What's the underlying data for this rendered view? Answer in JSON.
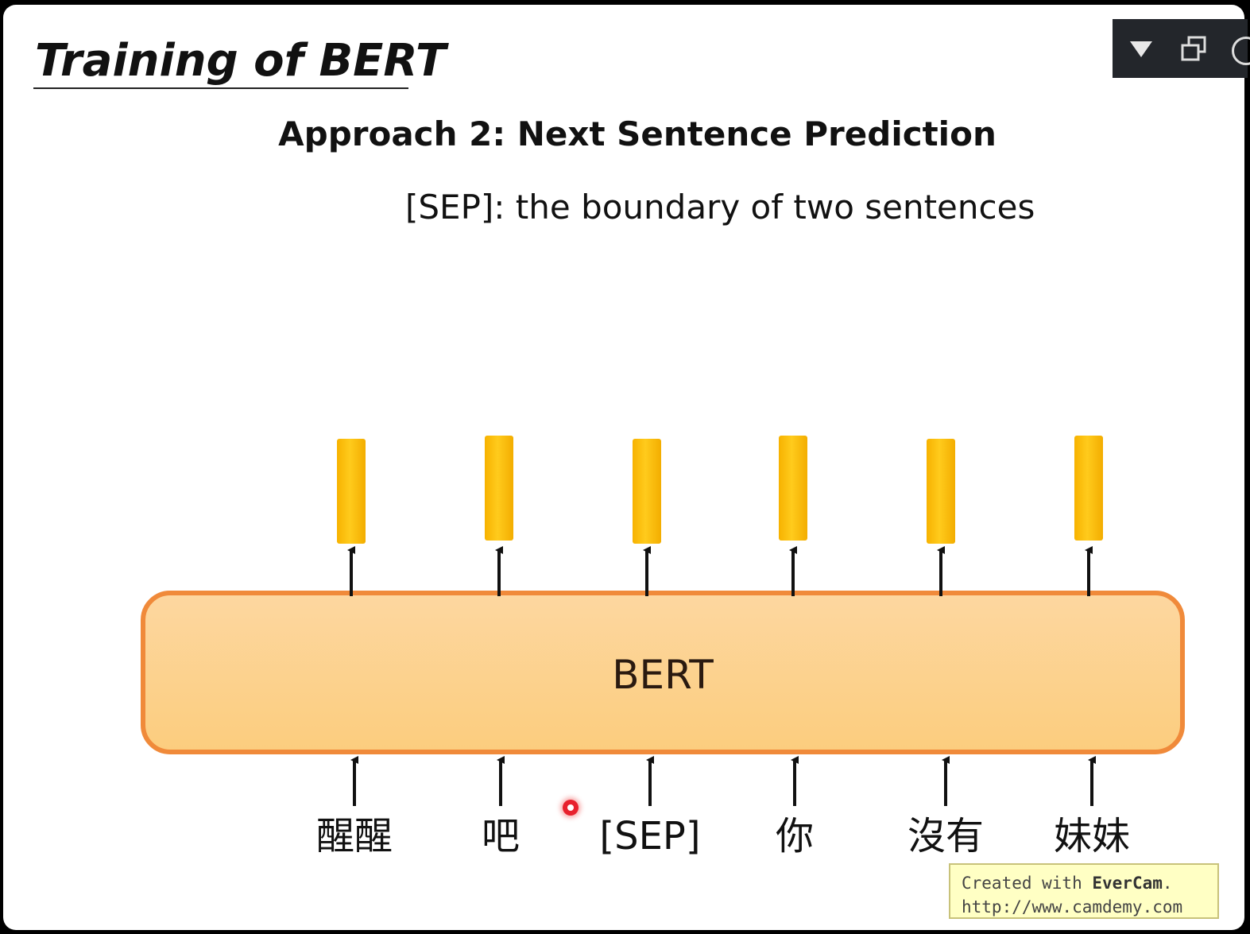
{
  "slide": {
    "title": "Training of BERT",
    "subtitle": "Approach 2: Next Sentence Prediction",
    "note": "[SEP]: the boundary of two sentences"
  },
  "diagram": {
    "model_label": "BERT",
    "tokens": [
      "醒醒",
      "吧",
      "[SEP]",
      "你",
      "沒有",
      "妹妹"
    ],
    "colors": {
      "model_fill": "#fdd389",
      "model_border": "#f08a3a",
      "output_vector": "#fcbd12",
      "arrow": "#111111"
    }
  },
  "watermark": {
    "prefix": "Created with ",
    "brand": "EverCam",
    "suffix": ".",
    "url": "http://www.camdemy.com"
  },
  "toolbar": {
    "icons": [
      "dropdown-triangle-icon",
      "restore-window-icon"
    ]
  }
}
